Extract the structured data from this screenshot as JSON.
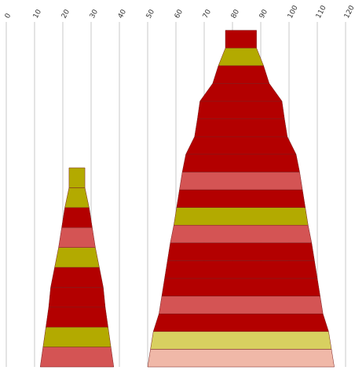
{
  "chart_data": {
    "type": "stacked-pyramid",
    "xlim": [
      0,
      120
    ],
    "xticks": [
      0,
      10,
      20,
      30,
      40,
      50,
      60,
      70,
      80,
      90,
      100,
      110,
      120
    ],
    "grid": true,
    "towers": [
      {
        "x": 25,
        "values": [
          26,
          24,
          22,
          20,
          18.6,
          15.8,
          13,
          10.8,
          8.6,
          5.6
        ],
        "colors": [
          "#d45454",
          "#b3aa00",
          "#b30000",
          "#b30000",
          "#b30000",
          "#b3aa00",
          "#d45454",
          "#b30000",
          "#b3aa00",
          "#b3aa00"
        ]
      },
      {
        "x": 83,
        "values": [
          66,
          64,
          62,
          58,
          56,
          54,
          52,
          50,
          47.5,
          45.5,
          43.5,
          41.5,
          39,
          32.8,
          30.8,
          29,
          20,
          16,
          11
        ],
        "colors": [
          "#f0b8a8",
          "#d8d060",
          "#b30000",
          "#d45454",
          "#b30000",
          "#b30000",
          "#b30000",
          "#d45454",
          "#b3aa00",
          "#b30000",
          "#d45454",
          "#b30000",
          "#b30000",
          "#b30000",
          "#b30000",
          "#b30000",
          "#b30000",
          "#b3aa00",
          "#b30000"
        ]
      }
    ]
  }
}
